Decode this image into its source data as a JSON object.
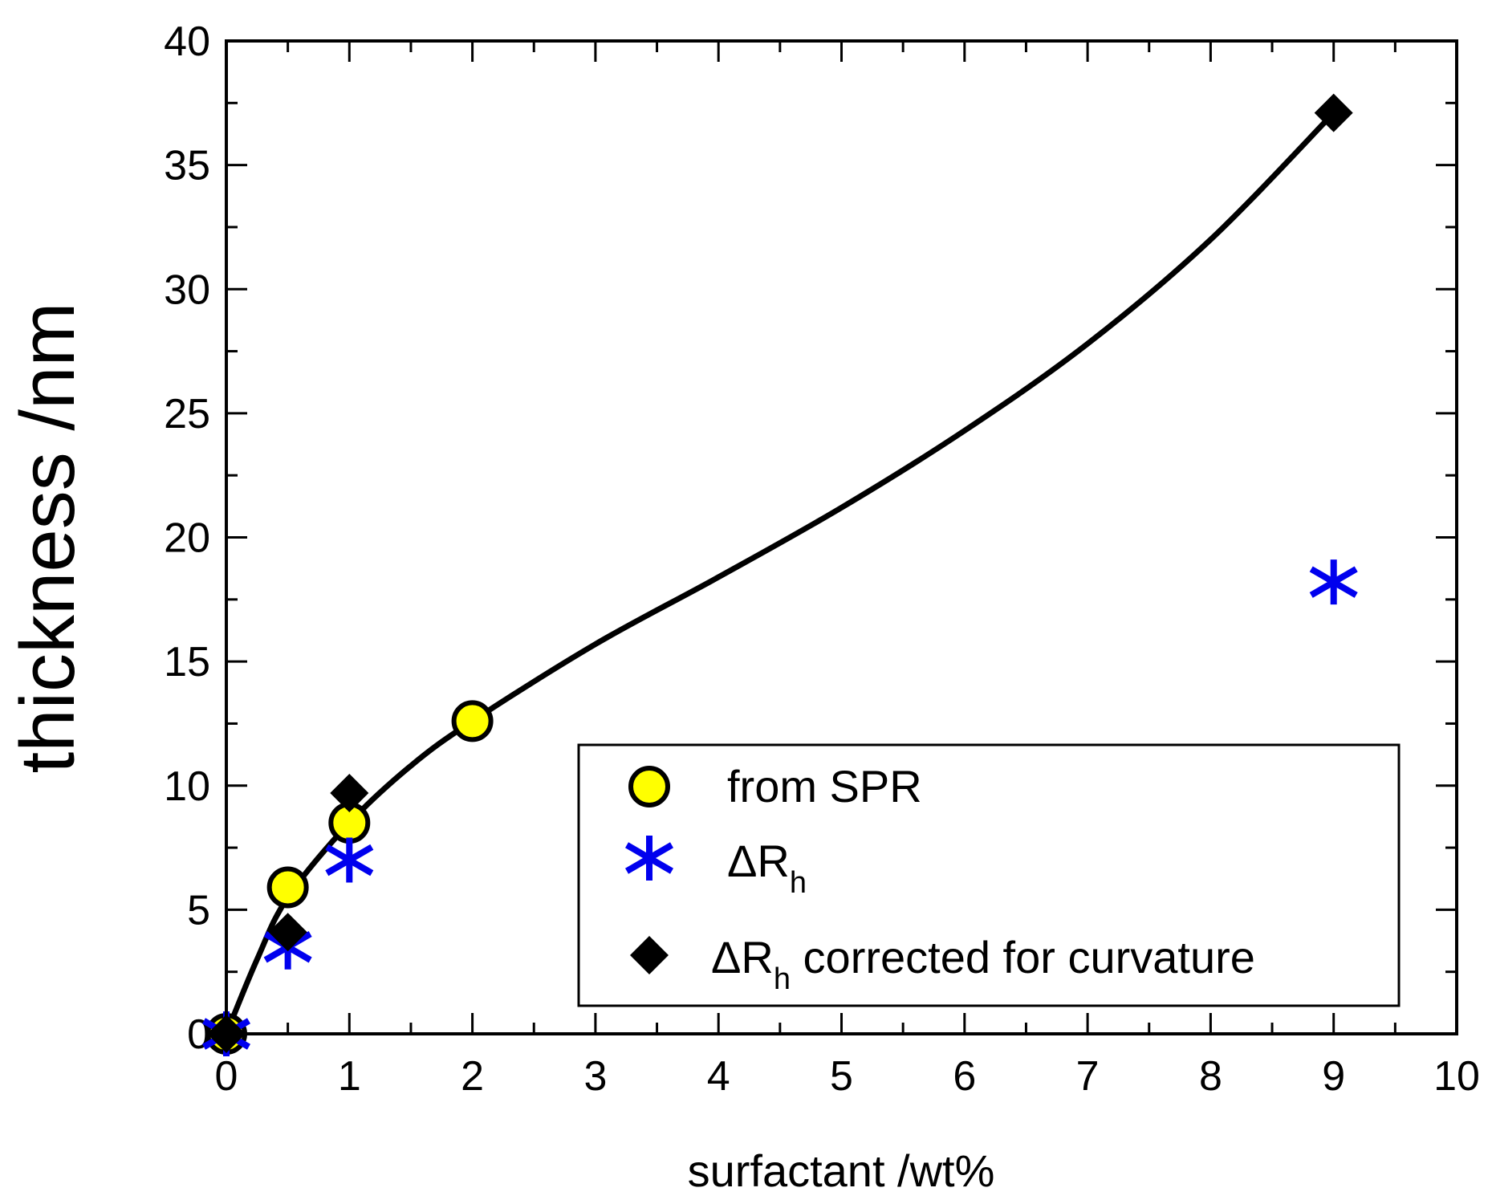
{
  "chart_data": {
    "type": "scatter",
    "title": "",
    "xlabel": "surfactant /wt%",
    "ylabel": "thickness /nm",
    "xlim": [
      0,
      10
    ],
    "ylim": [
      0,
      40
    ],
    "xticks": [
      "0",
      "1",
      "2",
      "3",
      "4",
      "5",
      "6",
      "7",
      "8",
      "9",
      "10"
    ],
    "yticks": [
      "0",
      "5",
      "10",
      "15",
      "20",
      "25",
      "30",
      "35",
      "40"
    ],
    "grid": false,
    "legend_position": "bottom-right",
    "series": [
      {
        "name": "from SPR",
        "marker": "circle",
        "color": "#ffff00",
        "edge_color": "#000000",
        "points": [
          [
            0,
            0
          ],
          [
            0.5,
            5.9
          ],
          [
            1,
            8.5
          ],
          [
            2,
            12.6
          ]
        ]
      },
      {
        "name": "ΔR",
        "name_subscript": "h",
        "marker": "asterisk",
        "color": "#0000ee",
        "points": [
          [
            0,
            0
          ],
          [
            0.5,
            3.5
          ],
          [
            1,
            7.0
          ],
          [
            9,
            18.2
          ]
        ]
      },
      {
        "name": "ΔR",
        "name_subscript": "h",
        "name_suffix": " corrected for curvature",
        "marker": "diamond",
        "color": "#000000",
        "points": [
          [
            0,
            0
          ],
          [
            0.5,
            4.1
          ],
          [
            1,
            9.7
          ],
          [
            9,
            37.1
          ]
        ]
      }
    ],
    "fit_curve": {
      "color": "#000000",
      "points": [
        [
          0,
          0
        ],
        [
          0.25,
          3.0
        ],
        [
          0.5,
          5.5
        ],
        [
          1,
          8.5
        ],
        [
          1.5,
          10.8
        ],
        [
          2,
          12.6
        ],
        [
          3,
          15.7
        ],
        [
          4,
          18.4
        ],
        [
          5,
          21.2
        ],
        [
          6,
          24.3
        ],
        [
          7,
          27.8
        ],
        [
          8,
          32.0
        ],
        [
          9,
          37.1
        ]
      ]
    }
  }
}
